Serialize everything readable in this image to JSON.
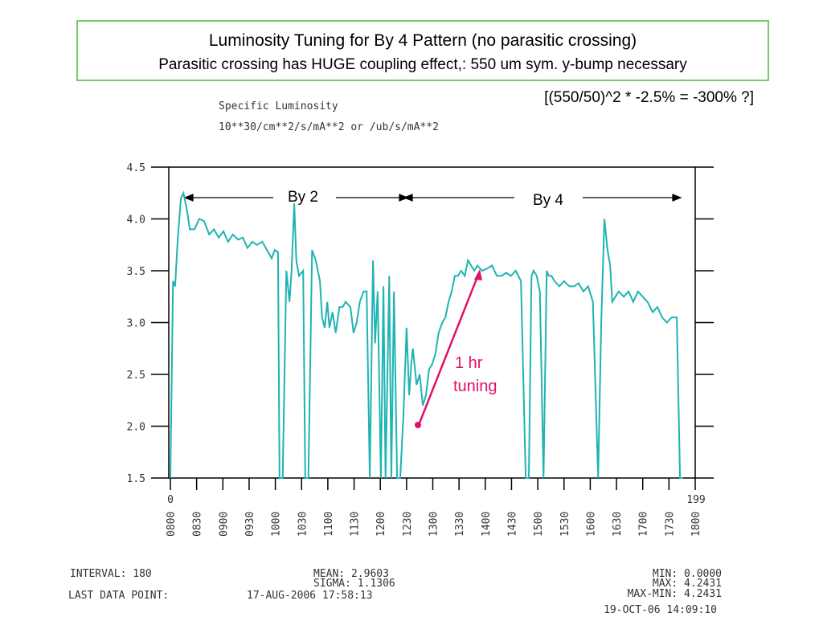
{
  "chart_data": {
    "type": "line",
    "title": "Luminosity Tuning for By 4 Pattern (no parasitic crossing)",
    "subtitle": "Parasitic crossing has HUGE coupling effect,: 550 um sym. y-bump necessary",
    "annotations": {
      "formula": "[(550/50)^2 * -2.5% = -300% ?]",
      "plot_title": "Specific Luminosity",
      "units": "10**30/cm**2/s/mA**2 or /ub/s/mA**2",
      "by2": "By 2",
      "by4": "By 4",
      "tuning_1": "1 hr",
      "tuning_2": "tuning",
      "start_index": "0",
      "end_index": "199"
    },
    "color": "#1fb3b3",
    "x": [
      8.0,
      8.05,
      8.09,
      8.14,
      8.2,
      8.25,
      8.31,
      8.37,
      8.46,
      8.55,
      8.64,
      8.74,
      8.83,
      8.92,
      9.01,
      9.1,
      9.19,
      9.29,
      9.38,
      9.47,
      9.56,
      9.65,
      9.75,
      9.84,
      9.93,
      9.99,
      10.05,
      10.08,
      10.14,
      10.21,
      10.27,
      10.31,
      10.36,
      10.4,
      10.45,
      10.53,
      10.57,
      10.63,
      10.7,
      10.77,
      10.85,
      10.89,
      10.94,
      10.99,
      11.03,
      11.09,
      11.15,
      11.22,
      11.28,
      11.34,
      11.43,
      11.49,
      11.55,
      11.61,
      11.68,
      11.74,
      11.8,
      11.86,
      11.9,
      11.95,
      12.01,
      12.06,
      12.1,
      12.17,
      12.21,
      12.26,
      12.32,
      12.38,
      12.44,
      12.5,
      12.55,
      12.59,
      12.62,
      12.69,
      12.75,
      12.81,
      12.87,
      12.93,
      12.99,
      13.05,
      13.11,
      13.18,
      13.24,
      13.3,
      13.36,
      13.42,
      13.48,
      13.54,
      13.61,
      13.67,
      13.73,
      13.79,
      13.85,
      13.94,
      14.03,
      14.13,
      14.22,
      14.31,
      14.4,
      14.49,
      14.58,
      14.68,
      14.77,
      14.83,
      14.88,
      14.92,
      14.98,
      15.04,
      15.11,
      15.17,
      15.21,
      15.26,
      15.32,
      15.41,
      15.5,
      15.6,
      15.69,
      15.78,
      15.87,
      15.96,
      16.05,
      16.15,
      16.21,
      16.27,
      16.33,
      16.38,
      16.42,
      16.48,
      16.54,
      16.64,
      16.73,
      16.82,
      16.91,
      17.0,
      17.09,
      17.19,
      17.28,
      17.37,
      17.46,
      17.55,
      17.65,
      17.71,
      17.77
    ],
    "values": [
      1.5,
      3.4,
      3.35,
      3.8,
      4.2,
      4.25,
      4.1,
      3.9,
      3.9,
      4.0,
      3.98,
      3.85,
      3.9,
      3.82,
      3.88,
      3.78,
      3.85,
      3.8,
      3.82,
      3.72,
      3.78,
      3.75,
      3.78,
      3.7,
      3.62,
      3.7,
      3.68,
      1.5,
      1.5,
      3.5,
      3.2,
      3.5,
      4.15,
      3.6,
      3.45,
      3.5,
      1.5,
      1.5,
      3.7,
      3.6,
      3.4,
      3.05,
      2.95,
      3.2,
      2.95,
      3.1,
      2.9,
      3.15,
      3.15,
      3.2,
      3.15,
      2.9,
      3.0,
      3.2,
      3.3,
      3.3,
      1.5,
      3.6,
      2.8,
      3.3,
      1.5,
      3.35,
      1.5,
      3.45,
      1.5,
      3.3,
      1.5,
      1.5,
      2.1,
      2.95,
      2.3,
      2.6,
      2.75,
      2.4,
      2.5,
      2.2,
      2.3,
      2.55,
      2.6,
      2.7,
      2.9,
      3.0,
      3.05,
      3.2,
      3.3,
      3.45,
      3.45,
      3.5,
      3.45,
      3.6,
      3.55,
      3.5,
      3.55,
      3.5,
      3.52,
      3.55,
      3.45,
      3.45,
      3.48,
      3.45,
      3.5,
      3.4,
      1.5,
      1.5,
      3.45,
      3.5,
      3.45,
      3.3,
      1.5,
      3.5,
      3.45,
      3.45,
      3.4,
      3.35,
      3.4,
      3.35,
      3.35,
      3.38,
      3.3,
      3.35,
      3.2,
      1.5,
      3.0,
      4.0,
      3.7,
      3.55,
      3.2,
      3.25,
      3.3,
      3.25,
      3.3,
      3.2,
      3.3,
      3.25,
      3.2,
      3.1,
      3.15,
      3.05,
      3.0,
      3.05,
      3.05,
      1.5,
      1.5
    ],
    "xlim": [
      8,
      18
    ],
    "xticks": [
      {
        "value": 8,
        "label": "0800"
      },
      {
        "value": 8.5,
        "label": "0830"
      },
      {
        "value": 9,
        "label": "0900"
      },
      {
        "value": 9.5,
        "label": "0930"
      },
      {
        "value": 10,
        "label": "1000"
      },
      {
        "value": 10.5,
        "label": "1030"
      },
      {
        "value": 11,
        "label": "1100"
      },
      {
        "value": 11.5,
        "label": "1130"
      },
      {
        "value": 12,
        "label": "1200"
      },
      {
        "value": 12.5,
        "label": "1230"
      },
      {
        "value": 13,
        "label": "1300"
      },
      {
        "value": 13.5,
        "label": "1330"
      },
      {
        "value": 14,
        "label": "1400"
      },
      {
        "value": 14.5,
        "label": "1430"
      },
      {
        "value": 15,
        "label": "1500"
      },
      {
        "value": 15.5,
        "label": "1530"
      },
      {
        "value": 16,
        "label": "1600"
      },
      {
        "value": 16.5,
        "label": "1630"
      },
      {
        "value": 17,
        "label": "1700"
      },
      {
        "value": 17.5,
        "label": "1730"
      },
      {
        "value": 18,
        "label": "1800"
      }
    ],
    "ylim": [
      1.5,
      4.5
    ],
    "yticks": [
      {
        "value": 1.5,
        "label": "1.5"
      },
      {
        "value": 2,
        "label": "2.0"
      },
      {
        "value": 2.5,
        "label": "2.5"
      },
      {
        "value": 3,
        "label": "3.0"
      },
      {
        "value": 3.5,
        "label": "3.5"
      },
      {
        "value": 4,
        "label": "4.0"
      },
      {
        "value": 4.5,
        "label": "4.5"
      }
    ],
    "stats": {
      "interval": "INTERVAL:  180",
      "mean": "MEAN: 2.9603",
      "sigma": "SIGMA: 1.1306",
      "min": "MIN: 0.0000",
      "max": "MAX: 4.2431",
      "maxmin": "MAX-MIN: 4.2431",
      "last_label": "LAST DATA POINT:",
      "last_value": "17-AUG-2006 17:58:13",
      "printed": "19-OCT-06 14:09:10"
    }
  }
}
